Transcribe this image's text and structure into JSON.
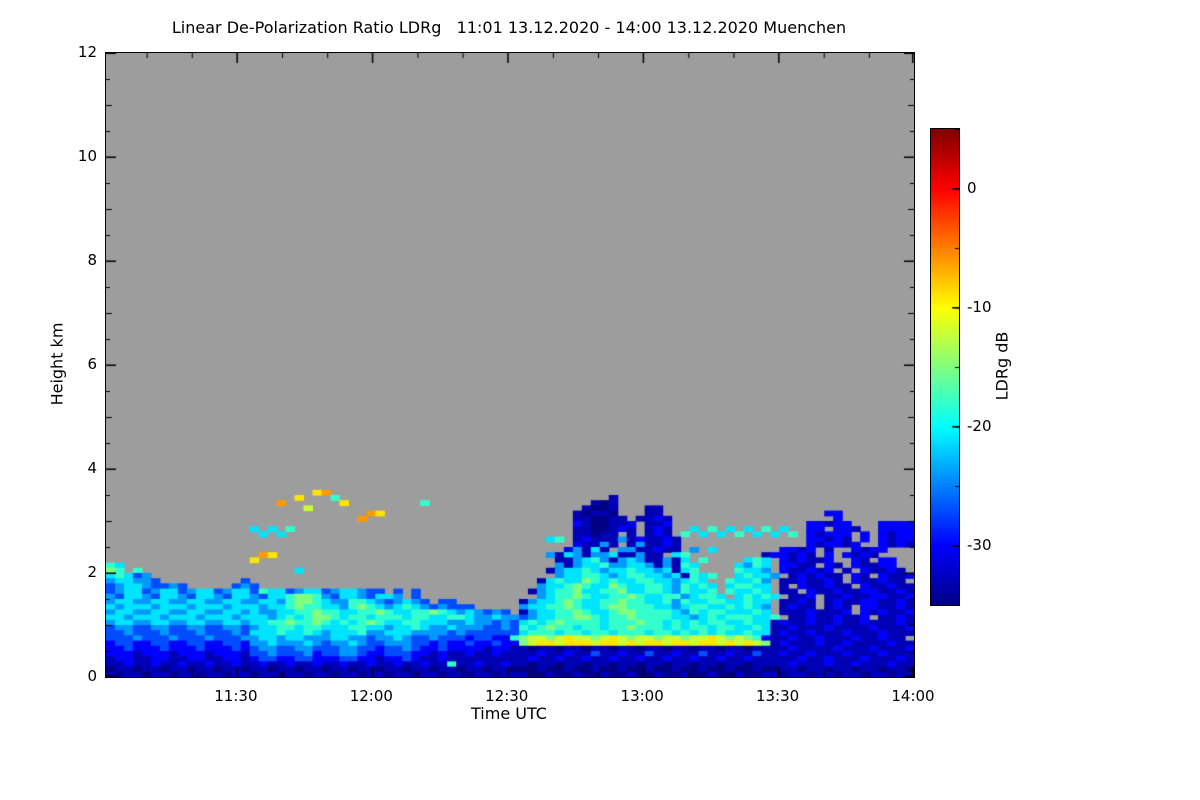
{
  "title": "Linear De-Polarization Ratio LDRg   11:01 13.12.2020 - 14:00 13.12.2020 Muenchen",
  "chart_data": {
    "type": "heatmap",
    "title": "Linear De-Polarization Ratio LDRg   11:01 13.12.2020 - 14:00 13.12.2020 Muenchen",
    "xlabel": "Time UTC",
    "ylabel": "Height km",
    "time_start": "11:01",
    "time_end": "14:00",
    "date": "13.12.2020",
    "station": "Muenchen",
    "ylim": [
      0,
      12
    ],
    "y_ticks": [
      0,
      2,
      4,
      6,
      8,
      10,
      12
    ],
    "y_minor_step_km": 0.5,
    "x_total_min": 179,
    "x_ticks": [
      {
        "label": "11:30",
        "min": 29
      },
      {
        "label": "12:00",
        "min": 59
      },
      {
        "label": "12:30",
        "min": 89
      },
      {
        "label": "13:00",
        "min": 119
      },
      {
        "label": "13:30",
        "min": 149
      },
      {
        "label": "14:00",
        "min": 179
      }
    ],
    "x_minor_every_min": 10,
    "no_data_color": "#9D9D9D",
    "colorbar": {
      "label": "LDRg dB",
      "ticks": [
        0,
        -10,
        -20,
        -30
      ],
      "vmin": -35,
      "vmax": 5,
      "minor_step": 5,
      "colormap_stops": [
        {
          "t": 0.0,
          "color": "#000083"
        },
        {
          "t": 0.125,
          "color": "#0000FF"
        },
        {
          "t": 0.375,
          "color": "#00FFFF"
        },
        {
          "t": 0.625,
          "color": "#FFFF00"
        },
        {
          "t": 0.875,
          "color": "#FF0000"
        },
        {
          "t": 1.0,
          "color": "#800000"
        }
      ]
    },
    "grid": {
      "cols": 90,
      "rows": 36,
      "y_bottom_km": 0,
      "y_top_km": 3.6,
      "encoding": "one char per 2-min column; '.'=no data; letters a..l map to LDR dB via value = -36 + 3*(letter index from a)",
      "rows_top_to_bottom": [
        ".......................jk",
        ".....................j...g..............................b",
        "...................k......j........g..................bab",
        "......................i..............................baab...bb",
        ".............................kj.....................babba...bb..................cc",
        "............................k.......................bbaabb.bbcb..................c",
        "....................................................cbaabbc.bbc...............ccbcc...cccc",
        "................f.f.g...............................bbaabcb.bcb..f.g.f.f.g.f..cc.ccb..cccc",
        ".................f.f................................bbabb.b.bcb.g.f.f.g.f.f.g.cbccc.c.cbcc",
        ".................................................fg.bcbbbebcbbcb..............ccbcb.c.cbcc",
        "....................................................cbbeb.bebbcb..............cbccbc..cbcb",
        "...................................................cebfb.eebbcbb.e.f.......ccbc.b..cbcc...",
        ".................kj..............................ebfebeefbbebb.fg........bccbcb.c.cbcb..",
        "................j.................................bbefgebefebbebf.g....fgf.cbcbbc..cb.cc..",
        "gf................................................ebeffgeeffebebgf....fegf.ccbb.cb.cbbcc..",
        "hg.g.................f...........................beffgfeffgffefbfg....gffe.cbbcbc.b.cbbcb.",
        "fgfde.............................................effggfefggffefbgfg..fgffe.bcbcbb.cb.cbbc.",
        "effeed.........d................................bfgffhgfgffggffefgf..gffge.bbcbbcb.cbbcbb.",
        "deffedded.....ded...............................effghgffhgffggfegfgf.fggff.b.cbbcbb.cbbcbb",
        "deffdeffdeffdeffdgffdeffdeffedd.d.d............befgghffgghffggfegffg.gffgf.bb.cbbcbbccbbcb",
        "edffedffedffedffedffghhgedffedffe.d.............efgghgffgghgffggefggf.fgfgf.bbc.bbcbbccbbcb",
        "effeeffeeffeeffeeffeghhgfeeggfedefed.dd.......beffghgffgghggffgegffggffgff.bbcb.bcbbccbbcb",
        "fefffefffefffefffeffghggffeghgfefgfededdd.....effgghgffghhgggffefggffgfgfe.bcbb.bcb.ccbbcb",
        "effeeffeeffeeffefeeffgghggffgghgffgghgfefeded.beffgghgffghhggggfegfggfffgf.bbbcbbbc.cbcbbc",
        "ffefffefffefffefffefgfghhgfggfgggfggffggfeefeedeffgghhgfgghggggffefgfgggffg.bbcbbcbbc.bbcbb",
        "effeeffeeffeeffeffgghgghgfgfghgffggfffeefeededfgfghggggfggghggfgfgfggffgffbcbbcbbcbbcbbbcb",
        "deeddeeddeeddeedeffggfggfffggffeffgfeefeeeddedgfghggfggfgghgggfgfggfggffgfbbcbbbcbbbbcbbbc",
        "ddedddedddedddedfffgffgfefffgeefffeeeededdddddfgggfggfggfgggfggfgfgfgffgffbcbbcbbbcbbbcbbb",
        "dddedddedddedddeeffeffeeeffeedeefeddedddcddccghiihijiihijihiihiihiijihihgcbbcbbcbbbcbbcbb",
        "cddccddccddccddceefeeefedeefeddeeeddcdccdccdcchijjijjjijjijijjijjijjijijihbcbbbcbbcbbbbcbb",
        "ccdcccdcccdcccdcdeeddeedddeeddcddedccdccccbccbbabbabbabbabbabbabbabbabbabbbbcbbbbcbbbcbbbc",
        "cccbcccbcccbcccbddedddecddeedccdddccbcbbcbbcbbbbcbbcbbdbbcbbdbbcbbdbbcbbdbbcbbcbbbcbbbcbbb",
        "bccbbccbbccbbccbcddccddcccddccbccdcbbcbbbbbbbbbcbbcbbcbbcbbcbbcbbcbbcbbcbbbbbcbbcbbbcbbbcb",
        "bbcbbcbbcbbcbbcbbcbbcbbcbbcbbcbbcbbcbbgbbcbbcbbabbabbabbabbabbabbabbabbabbbbcbbbcbbcbbbcbb",
        "abbabbabbabbabbabbabbabbabbabbabbabbabbabbabbaaabaabaabaabaabaabaabaabaabaabbabbabbabbabba",
        "babbabbabbabbabbabbabbabbabbabbabbabbabbabbabbbaabaabaabaabaabaabaabaabaabbabbabbabbabbabb"
      ]
    }
  }
}
